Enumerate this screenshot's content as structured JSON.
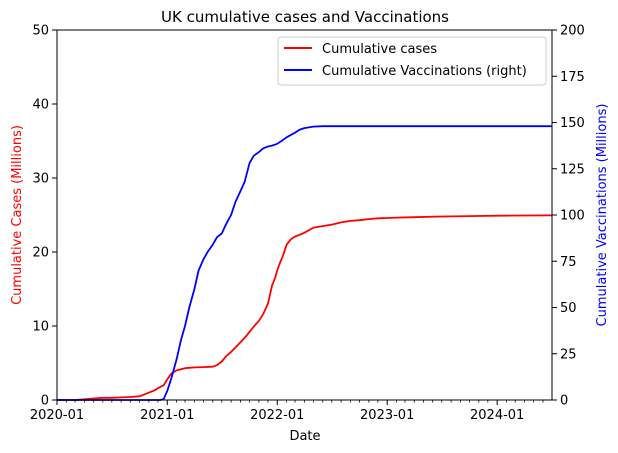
{
  "chart_data": {
    "type": "line",
    "title": "UK cumulative cases and Vaccinations",
    "xlabel": "Date",
    "ylabel_left": "Cumulative Cases (Millions)",
    "ylabel_right": "Cumulative Vaccinations (Millions)",
    "xlim": [
      "2020-01-01",
      "2024-07-01"
    ],
    "ylim_left": [
      0,
      50
    ],
    "ylim_right": [
      0,
      200
    ],
    "x_ticks": [
      "2020-01",
      "2021-01",
      "2022-01",
      "2023-01",
      "2024-01"
    ],
    "y_ticks_left": [
      0,
      10,
      20,
      30,
      40,
      50
    ],
    "y_ticks_right": [
      0,
      25,
      50,
      75,
      100,
      125,
      150,
      175,
      200
    ],
    "legend_position": "top-right",
    "grid": false,
    "colors": {
      "cases": "#ff0000",
      "vaccinations": "#0000ff"
    },
    "series": [
      {
        "name": "Cumulative cases",
        "axis": "left",
        "color": "#ff0000",
        "x": [
          "2020-01-01",
          "2020-03-01",
          "2020-04-01",
          "2020-05-01",
          "2020-06-01",
          "2020-07-01",
          "2020-08-01",
          "2020-09-01",
          "2020-10-01",
          "2020-11-01",
          "2020-11-20",
          "2020-12-01",
          "2020-12-20",
          "2021-01-01",
          "2021-01-15",
          "2021-02-01",
          "2021-03-01",
          "2021-04-01",
          "2021-05-01",
          "2021-06-01",
          "2021-06-15",
          "2021-07-01",
          "2021-07-15",
          "2021-08-01",
          "2021-08-15",
          "2021-09-01",
          "2021-09-15",
          "2021-10-01",
          "2021-10-15",
          "2021-11-01",
          "2021-11-15",
          "2021-12-01",
          "2021-12-15",
          "2021-12-25",
          "2022-01-01",
          "2022-01-10",
          "2022-01-20",
          "2022-02-01",
          "2022-02-15",
          "2022-03-01",
          "2022-03-15",
          "2022-04-01",
          "2022-05-01",
          "2022-06-01",
          "2022-07-01",
          "2022-08-01",
          "2022-09-01",
          "2022-10-01",
          "2022-11-01",
          "2022-12-01",
          "2023-01-01",
          "2023-02-01",
          "2023-04-01",
          "2023-07-01",
          "2023-10-01",
          "2024-01-01",
          "2024-04-01",
          "2024-07-01"
        ],
        "values": [
          0,
          0,
          0.1,
          0.2,
          0.3,
          0.3,
          0.35,
          0.4,
          0.5,
          1.0,
          1.3,
          1.6,
          2.0,
          2.8,
          3.6,
          4.0,
          4.3,
          4.4,
          4.45,
          4.5,
          4.7,
          5.2,
          5.9,
          6.5,
          7.1,
          7.8,
          8.4,
          9.2,
          9.9,
          10.7,
          11.6,
          13.0,
          15.5,
          16.5,
          17.5,
          18.5,
          19.5,
          21.0,
          21.7,
          22.1,
          22.3,
          22.6,
          23.3,
          23.5,
          23.7,
          24.0,
          24.2,
          24.3,
          24.45,
          24.55,
          24.6,
          24.65,
          24.7,
          24.8,
          24.85,
          24.9,
          24.93,
          24.95
        ]
      },
      {
        "name": "Cumulative Vaccinations (right)",
        "axis": "right",
        "color": "#0000ff",
        "x": [
          "2020-01-01",
          "2020-12-01",
          "2020-12-08",
          "2020-12-20",
          "2021-01-01",
          "2021-01-15",
          "2021-02-01",
          "2021-02-15",
          "2021-03-01",
          "2021-03-15",
          "2021-04-01",
          "2021-04-15",
          "2021-05-01",
          "2021-05-15",
          "2021-06-01",
          "2021-06-15",
          "2021-07-01",
          "2021-07-15",
          "2021-08-01",
          "2021-08-15",
          "2021-09-01",
          "2021-09-15",
          "2021-10-01",
          "2021-10-15",
          "2021-11-01",
          "2021-11-15",
          "2021-12-01",
          "2021-12-15",
          "2022-01-01",
          "2022-01-15",
          "2022-02-01",
          "2022-03-01",
          "2022-03-15",
          "2022-04-01",
          "2022-05-01",
          "2022-06-01",
          "2022-07-01",
          "2022-08-01",
          "2022-09-01",
          "2022-10-01",
          "2023-01-01",
          "2023-07-01",
          "2024-01-01",
          "2024-07-01"
        ],
        "values": [
          0,
          0,
          0,
          0.5,
          5,
          12,
          22,
          32,
          40,
          50,
          60,
          70,
          76,
          80,
          84,
          88,
          90,
          95,
          100,
          107,
          113,
          118,
          128,
          132,
          134,
          136,
          137,
          137.5,
          138.5,
          140,
          142,
          144.5,
          146,
          147,
          147.8,
          148,
          148,
          148,
          148,
          148,
          148,
          148,
          148,
          148
        ]
      }
    ],
    "legend": [
      "Cumulative cases",
      "Cumulative Vaccinations (right)"
    ]
  }
}
